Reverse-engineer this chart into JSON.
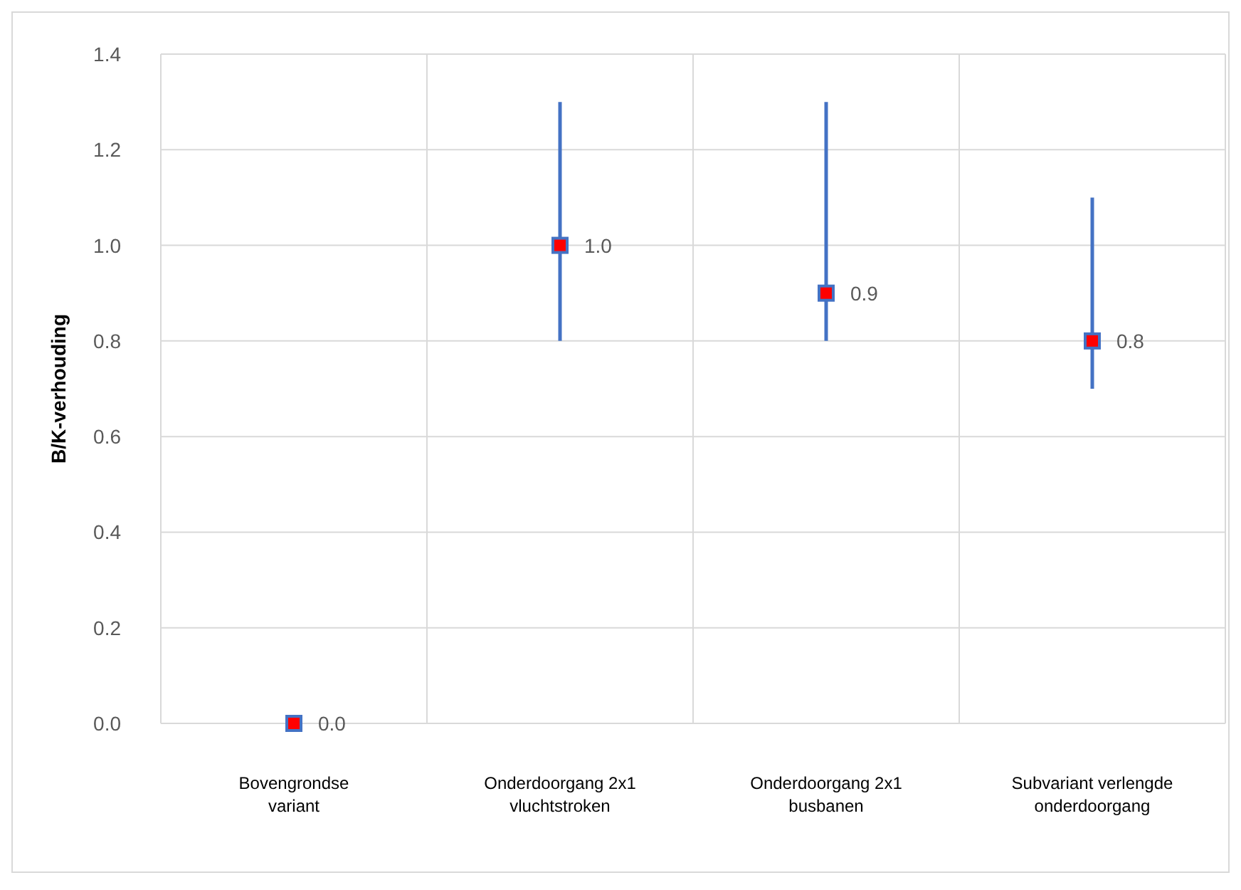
{
  "chart_data": {
    "type": "scatter",
    "ylabel": "B/K-verhouding",
    "categories": [
      "Bovengrondse variant",
      "Onderdoorgang 2x1 vluchtstroken",
      "Onderdoorgang 2x1 busbanen",
      "Subvariant verlengde onderdoorgang"
    ],
    "series": [
      {
        "color": "#ff0000",
        "values": [
          0.0,
          1.0,
          0.9,
          0.8
        ],
        "errors": [
          null,
          [
            0.8,
            1.3
          ],
          [
            0.8,
            1.3
          ],
          [
            0.7,
            1.1
          ]
        ],
        "value_labels": [
          "0.0",
          "1.0",
          "0.9",
          "0.8"
        ]
      }
    ],
    "ylim": [
      0,
      1.4
    ],
    "yticks": [
      {
        "value": 0,
        "label": "0.0"
      },
      {
        "value": 0.2,
        "label": "0.2"
      },
      {
        "value": 0.4,
        "label": "0.4"
      },
      {
        "value": 0.6,
        "label": "0.6"
      },
      {
        "value": 0.8,
        "label": "0.8"
      },
      {
        "value": 1,
        "label": "1.0"
      },
      {
        "value": 1.2,
        "label": "1.2"
      },
      {
        "value": 1.4,
        "label": "1.4"
      }
    ],
    "grid": true,
    "marker": "square"
  }
}
